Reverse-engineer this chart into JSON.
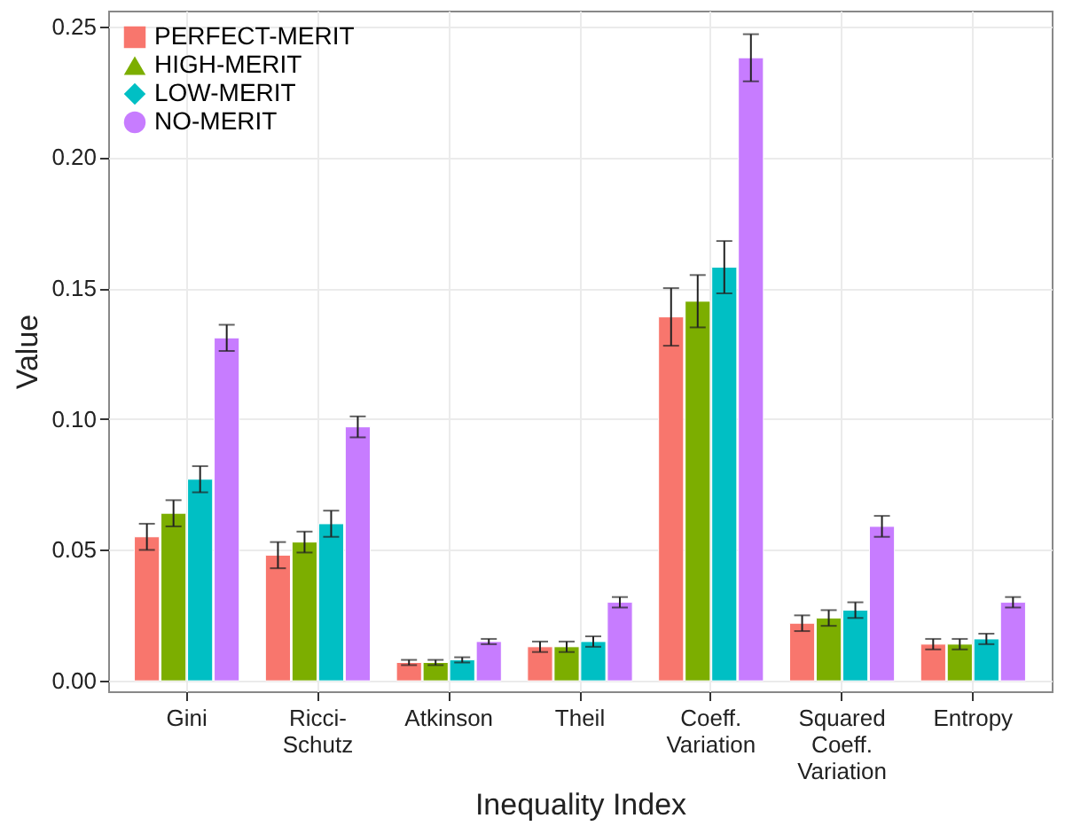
{
  "chart_data": {
    "type": "bar",
    "xlabel": "Inequality Index",
    "ylabel": "Value",
    "categories": [
      "Gini",
      "Ricci-\nSchutz",
      "Atkinson",
      "Theil",
      "Coeff.\nVariation",
      "Squared\nCoeff.\nVariation",
      "Entropy"
    ],
    "series": [
      {
        "name": "PERFECT-MERIT",
        "color": "#f8766d",
        "marker": "square",
        "values": [
          0.055,
          0.048,
          0.007,
          0.013,
          0.139,
          0.022,
          0.014
        ],
        "errors": [
          0.005,
          0.005,
          0.001,
          0.002,
          0.011,
          0.003,
          0.002
        ]
      },
      {
        "name": "HIGH-MERIT",
        "color": "#7cae00",
        "marker": "triangle",
        "values": [
          0.064,
          0.053,
          0.007,
          0.013,
          0.145,
          0.024,
          0.014
        ],
        "errors": [
          0.005,
          0.004,
          0.001,
          0.002,
          0.01,
          0.003,
          0.002
        ]
      },
      {
        "name": "LOW-MERIT",
        "color": "#00bfc4",
        "marker": "diamond",
        "values": [
          0.077,
          0.06,
          0.008,
          0.015,
          0.158,
          0.027,
          0.016
        ],
        "errors": [
          0.005,
          0.005,
          0.001,
          0.002,
          0.01,
          0.003,
          0.002
        ]
      },
      {
        "name": "NO-MERIT",
        "color": "#c77cff",
        "marker": "circle",
        "values": [
          0.131,
          0.097,
          0.015,
          0.03,
          0.238,
          0.059,
          0.03
        ],
        "errors": [
          0.005,
          0.004,
          0.001,
          0.002,
          0.009,
          0.004,
          0.002
        ]
      }
    ],
    "ylim": [
      -0.004,
      0.256
    ],
    "yticks": [
      {
        "value": 0,
        "label": "0.00"
      },
      {
        "value": 0.05,
        "label": "0.05"
      },
      {
        "value": 0.1,
        "label": "0.10"
      },
      {
        "value": 0.15,
        "label": "0.15"
      },
      {
        "value": 0.2,
        "label": "0.20"
      },
      {
        "value": 0.25,
        "label": "0.25"
      }
    ],
    "grid": true,
    "legend": "top left"
  }
}
